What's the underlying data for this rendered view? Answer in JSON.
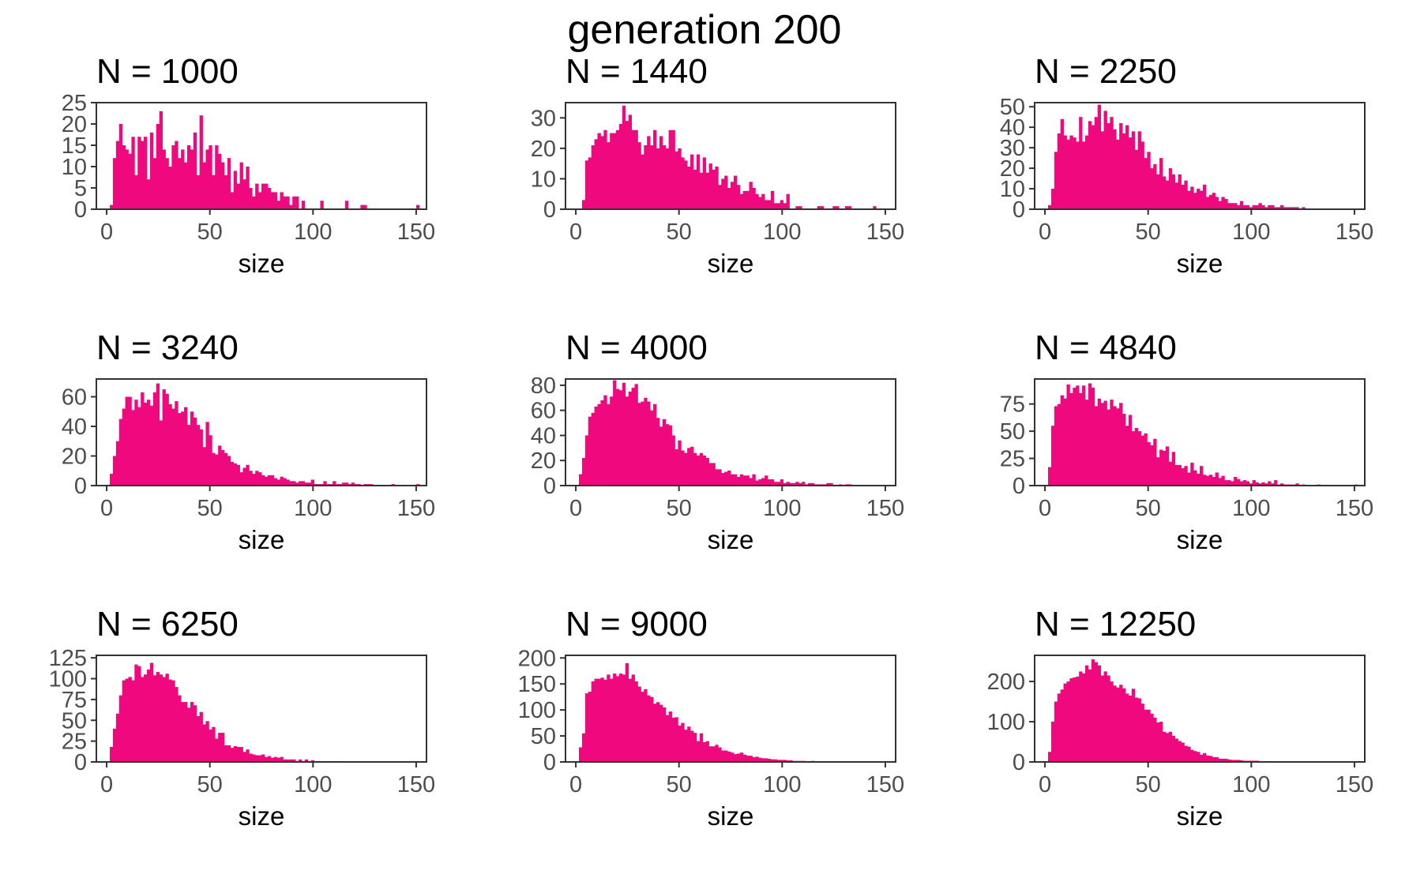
{
  "title": "generation 200",
  "colors": {
    "bar": "#f0087f",
    "frame": "#333333",
    "tick_text": "#4d4d4d"
  },
  "chart_data": [
    {
      "type": "bar",
      "title": "N = 1000",
      "xlabel": "size",
      "ylabel": "",
      "xlim": [
        -5,
        155
      ],
      "ylim": [
        0,
        25
      ],
      "xticks": [
        0,
        50,
        100,
        150
      ],
      "yticks": [
        0,
        5,
        10,
        15,
        20,
        25
      ],
      "grid": false,
      "bin_width": 1.5,
      "bin_start": 1.5,
      "counts": [
        1,
        12,
        16,
        20,
        15,
        14,
        13,
        17,
        8,
        17,
        16,
        17,
        7,
        18,
        12,
        20,
        23,
        14,
        12,
        10,
        15,
        16,
        12,
        14,
        11,
        15,
        14,
        18,
        8,
        22,
        11,
        14,
        15,
        8,
        15,
        13,
        11,
        8,
        12,
        4,
        9,
        6,
        11,
        7,
        10,
        5,
        3,
        6,
        4,
        6,
        6,
        5,
        4,
        4,
        2,
        4,
        3,
        3,
        1,
        3,
        3,
        0,
        2,
        0,
        0,
        0,
        0,
        0,
        2,
        0,
        0,
        0,
        0,
        0,
        0,
        0,
        2,
        0,
        0,
        0,
        0,
        1,
        1,
        0,
        0,
        0,
        0,
        0,
        0,
        0,
        0,
        0,
        0,
        0,
        0,
        0,
        0,
        0,
        0,
        1
      ]
    },
    {
      "type": "bar",
      "title": "N = 1440",
      "xlabel": "size",
      "ylabel": "",
      "xlim": [
        -5,
        155
      ],
      "ylim": [
        0,
        35
      ],
      "xticks": [
        0,
        50,
        100,
        150
      ],
      "yticks": [
        0,
        10,
        20,
        30
      ],
      "grid": false,
      "bin_width": 1.5,
      "bin_start": 1.5,
      "counts": [
        0,
        3,
        16,
        17,
        21,
        23,
        25,
        24,
        26,
        22,
        25,
        25,
        26,
        28,
        34,
        29,
        31,
        26,
        26,
        22,
        18,
        21,
        24,
        21,
        26,
        20,
        24,
        21,
        20,
        26,
        26,
        19,
        20,
        17,
        16,
        14,
        18,
        13,
        18,
        12,
        17,
        12,
        15,
        13,
        14,
        8,
        10,
        11,
        7,
        9,
        11,
        8,
        5,
        6,
        6,
        9,
        7,
        5,
        4,
        5,
        3,
        3,
        6,
        2,
        2,
        3,
        2,
        5,
        0,
        0,
        1,
        1,
        0,
        0,
        0,
        0,
        0,
        1,
        1,
        0,
        0,
        0,
        1,
        1,
        0,
        0,
        1,
        1,
        0,
        0,
        0,
        0,
        0,
        0,
        0,
        1,
        0,
        0,
        0,
        0
      ]
    },
    {
      "type": "bar",
      "title": "N = 2250",
      "xlabel": "size",
      "ylabel": "",
      "xlim": [
        -5,
        155
      ],
      "ylim": [
        0,
        52
      ],
      "xticks": [
        0,
        50,
        100,
        150
      ],
      "yticks": [
        0,
        10,
        20,
        30,
        40,
        50
      ],
      "grid": false,
      "bin_width": 1.5,
      "bin_start": 1.5,
      "counts": [
        2,
        10,
        28,
        37,
        44,
        36,
        34,
        36,
        35,
        33,
        45,
        33,
        36,
        43,
        41,
        45,
        51,
        38,
        48,
        42,
        45,
        39,
        34,
        42,
        37,
        41,
        35,
        38,
        29,
        38,
        33,
        25,
        28,
        20,
        22,
        17,
        25,
        16,
        14,
        20,
        17,
        13,
        17,
        12,
        14,
        9,
        11,
        8,
        10,
        9,
        12,
        6,
        7,
        8,
        6,
        4,
        6,
        5,
        3,
        3,
        3,
        2,
        4,
        2,
        2,
        1,
        2,
        2,
        3,
        2,
        1,
        2,
        2,
        1,
        1,
        2,
        1,
        1,
        1,
        1,
        1,
        0,
        1,
        0,
        0,
        0,
        0,
        0,
        0,
        0,
        0,
        0,
        0,
        0,
        0,
        0,
        0,
        0,
        0,
        0
      ]
    },
    {
      "type": "bar",
      "title": "N = 3240",
      "xlabel": "size",
      "ylabel": "",
      "xlim": [
        -5,
        155
      ],
      "ylim": [
        0,
        72
      ],
      "xticks": [
        0,
        50,
        100,
        150
      ],
      "yticks": [
        0,
        20,
        40,
        60
      ],
      "grid": false,
      "bin_width": 1.5,
      "bin_start": 1.5,
      "counts": [
        8,
        20,
        30,
        45,
        52,
        60,
        60,
        51,
        58,
        53,
        63,
        56,
        58,
        54,
        63,
        69,
        44,
        65,
        62,
        55,
        52,
        57,
        49,
        50,
        53,
        41,
        50,
        46,
        41,
        38,
        26,
        43,
        34,
        22,
        21,
        27,
        24,
        22,
        20,
        16,
        15,
        14,
        9,
        12,
        14,
        10,
        8,
        10,
        9,
        7,
        6,
        7,
        7,
        5,
        4,
        6,
        5,
        4,
        3,
        3,
        2,
        3,
        3,
        2,
        2,
        4,
        1,
        1,
        1,
        3,
        1,
        1,
        3,
        1,
        1,
        2,
        2,
        1,
        2,
        1,
        1,
        0,
        1,
        1,
        1,
        0,
        0,
        0,
        0,
        0,
        0,
        1,
        0,
        0,
        0,
        0,
        0,
        0,
        0,
        1
      ]
    },
    {
      "type": "bar",
      "title": "N = 4000",
      "xlabel": "size",
      "ylabel": "",
      "xlim": [
        -5,
        155
      ],
      "ylim": [
        0,
        85
      ],
      "xticks": [
        0,
        50,
        100,
        150
      ],
      "yticks": [
        0,
        20,
        40,
        60,
        80
      ],
      "grid": false,
      "bin_width": 1.5,
      "bin_start": 1.5,
      "counts": [
        9,
        22,
        40,
        55,
        58,
        63,
        65,
        68,
        72,
        65,
        71,
        84,
        77,
        76,
        82,
        71,
        75,
        78,
        81,
        66,
        67,
        70,
        67,
        60,
        65,
        54,
        47,
        53,
        49,
        48,
        40,
        29,
        36,
        28,
        26,
        30,
        31,
        26,
        24,
        26,
        24,
        22,
        18,
        18,
        13,
        13,
        10,
        11,
        12,
        9,
        9,
        7,
        9,
        8,
        8,
        6,
        9,
        4,
        5,
        6,
        8,
        5,
        5,
        3,
        3,
        5,
        2,
        3,
        2,
        2,
        3,
        2,
        3,
        1,
        2,
        2,
        1,
        1,
        1,
        1,
        2,
        2,
        0,
        0,
        1,
        0,
        1,
        1,
        0,
        0,
        0,
        0,
        0,
        0,
        0,
        0,
        0,
        0,
        0,
        0
      ]
    },
    {
      "type": "bar",
      "title": "N = 4840",
      "xlabel": "size",
      "ylabel": "",
      "xlim": [
        -5,
        155
      ],
      "ylim": [
        0,
        98
      ],
      "xticks": [
        0,
        50,
        100,
        150
      ],
      "yticks": [
        0,
        25,
        50,
        75
      ],
      "grid": false,
      "bin_width": 1.5,
      "bin_start": 1.5,
      "counts": [
        17,
        55,
        73,
        75,
        83,
        80,
        93,
        85,
        90,
        92,
        85,
        92,
        79,
        94,
        90,
        73,
        80,
        76,
        78,
        70,
        79,
        73,
        71,
        76,
        66,
        55,
        65,
        50,
        53,
        50,
        46,
        48,
        40,
        37,
        43,
        26,
        33,
        32,
        36,
        22,
        31,
        19,
        19,
        16,
        18,
        12,
        21,
        14,
        11,
        18,
        10,
        9,
        10,
        8,
        12,
        7,
        9,
        5,
        5,
        4,
        8,
        6,
        4,
        5,
        4,
        2,
        5,
        3,
        2,
        3,
        2,
        4,
        2,
        5,
        1,
        2,
        1,
        1,
        1,
        1,
        2,
        0,
        1,
        0,
        0,
        0,
        0,
        1,
        0,
        0,
        0,
        0,
        0,
        0,
        0,
        0,
        0,
        0,
        0,
        1
      ]
    },
    {
      "type": "bar",
      "title": "N = 6250",
      "xlabel": "size",
      "ylabel": "",
      "xlim": [
        -5,
        155
      ],
      "ylim": [
        0,
        128
      ],
      "xticks": [
        0,
        50,
        100,
        150
      ],
      "yticks": [
        0,
        25,
        50,
        75,
        100,
        125
      ],
      "grid": false,
      "bin_width": 1.5,
      "bin_start": 1.5,
      "counts": [
        18,
        40,
        58,
        80,
        98,
        100,
        102,
        98,
        117,
        115,
        102,
        105,
        111,
        119,
        104,
        108,
        105,
        102,
        106,
        99,
        98,
        90,
        80,
        72,
        72,
        65,
        72,
        68,
        55,
        60,
        45,
        49,
        39,
        42,
        28,
        35,
        35,
        20,
        20,
        17,
        19,
        18,
        18,
        12,
        15,
        10,
        9,
        8,
        8,
        9,
        6,
        7,
        5,
        6,
        5,
        6,
        3,
        3,
        3,
        3,
        1,
        3,
        1,
        3,
        1,
        2,
        1,
        1,
        1,
        0,
        1,
        1,
        1,
        1,
        1,
        0,
        0,
        0,
        0,
        1,
        0,
        0,
        0,
        0,
        0,
        0,
        0,
        0,
        0,
        0,
        0,
        0,
        0,
        0,
        0,
        0,
        0,
        0,
        0,
        0
      ]
    },
    {
      "type": "bar",
      "title": "N = 9000",
      "xlabel": "size",
      "ylabel": "",
      "xlim": [
        -5,
        155
      ],
      "ylim": [
        0,
        205
      ],
      "xticks": [
        0,
        50,
        100,
        150
      ],
      "yticks": [
        0,
        50,
        100,
        150,
        200
      ],
      "grid": false,
      "bin_width": 1.5,
      "bin_start": 1.5,
      "counts": [
        28,
        55,
        132,
        135,
        155,
        160,
        160,
        162,
        158,
        168,
        160,
        170,
        165,
        170,
        168,
        190,
        160,
        168,
        155,
        145,
        135,
        140,
        128,
        125,
        112,
        115,
        110,
        105,
        90,
        97,
        85,
        86,
        70,
        75,
        62,
        68,
        60,
        56,
        40,
        55,
        38,
        40,
        30,
        30,
        33,
        28,
        22,
        22,
        20,
        18,
        15,
        16,
        18,
        14,
        12,
        12,
        9,
        10,
        8,
        7,
        7,
        6,
        5,
        5,
        4,
        4,
        4,
        3,
        3,
        2,
        2,
        2,
        2,
        1,
        1,
        2,
        1,
        1,
        1,
        1,
        1,
        0,
        1,
        1,
        1,
        0,
        1,
        0,
        0,
        0,
        0,
        0,
        0,
        0,
        0,
        0,
        0,
        0,
        0,
        0
      ]
    },
    {
      "type": "bar",
      "title": "N = 12250",
      "xlabel": "size",
      "ylabel": "",
      "xlim": [
        -5,
        155
      ],
      "ylim": [
        0,
        265
      ],
      "xticks": [
        0,
        50,
        100,
        150
      ],
      "yticks": [
        0,
        100,
        200
      ],
      "grid": false,
      "bin_width": 1.5,
      "bin_start": 1.5,
      "counts": [
        25,
        100,
        150,
        170,
        180,
        195,
        200,
        208,
        210,
        212,
        225,
        220,
        240,
        230,
        255,
        248,
        240,
        215,
        225,
        215,
        200,
        190,
        185,
        192,
        183,
        170,
        165,
        182,
        160,
        158,
        145,
        130,
        130,
        120,
        110,
        98,
        100,
        75,
        72,
        75,
        65,
        58,
        52,
        48,
        40,
        38,
        30,
        27,
        25,
        18,
        22,
        16,
        15,
        12,
        12,
        8,
        8,
        8,
        6,
        5,
        5,
        5,
        4,
        3,
        3,
        3,
        3,
        3,
        2,
        2,
        2,
        2,
        2,
        1,
        1,
        1,
        1,
        1,
        1,
        1,
        1,
        1,
        1,
        0,
        1,
        0,
        0,
        0,
        0,
        0,
        0,
        0,
        0,
        0,
        0,
        0,
        0,
        0,
        0,
        0
      ]
    }
  ]
}
